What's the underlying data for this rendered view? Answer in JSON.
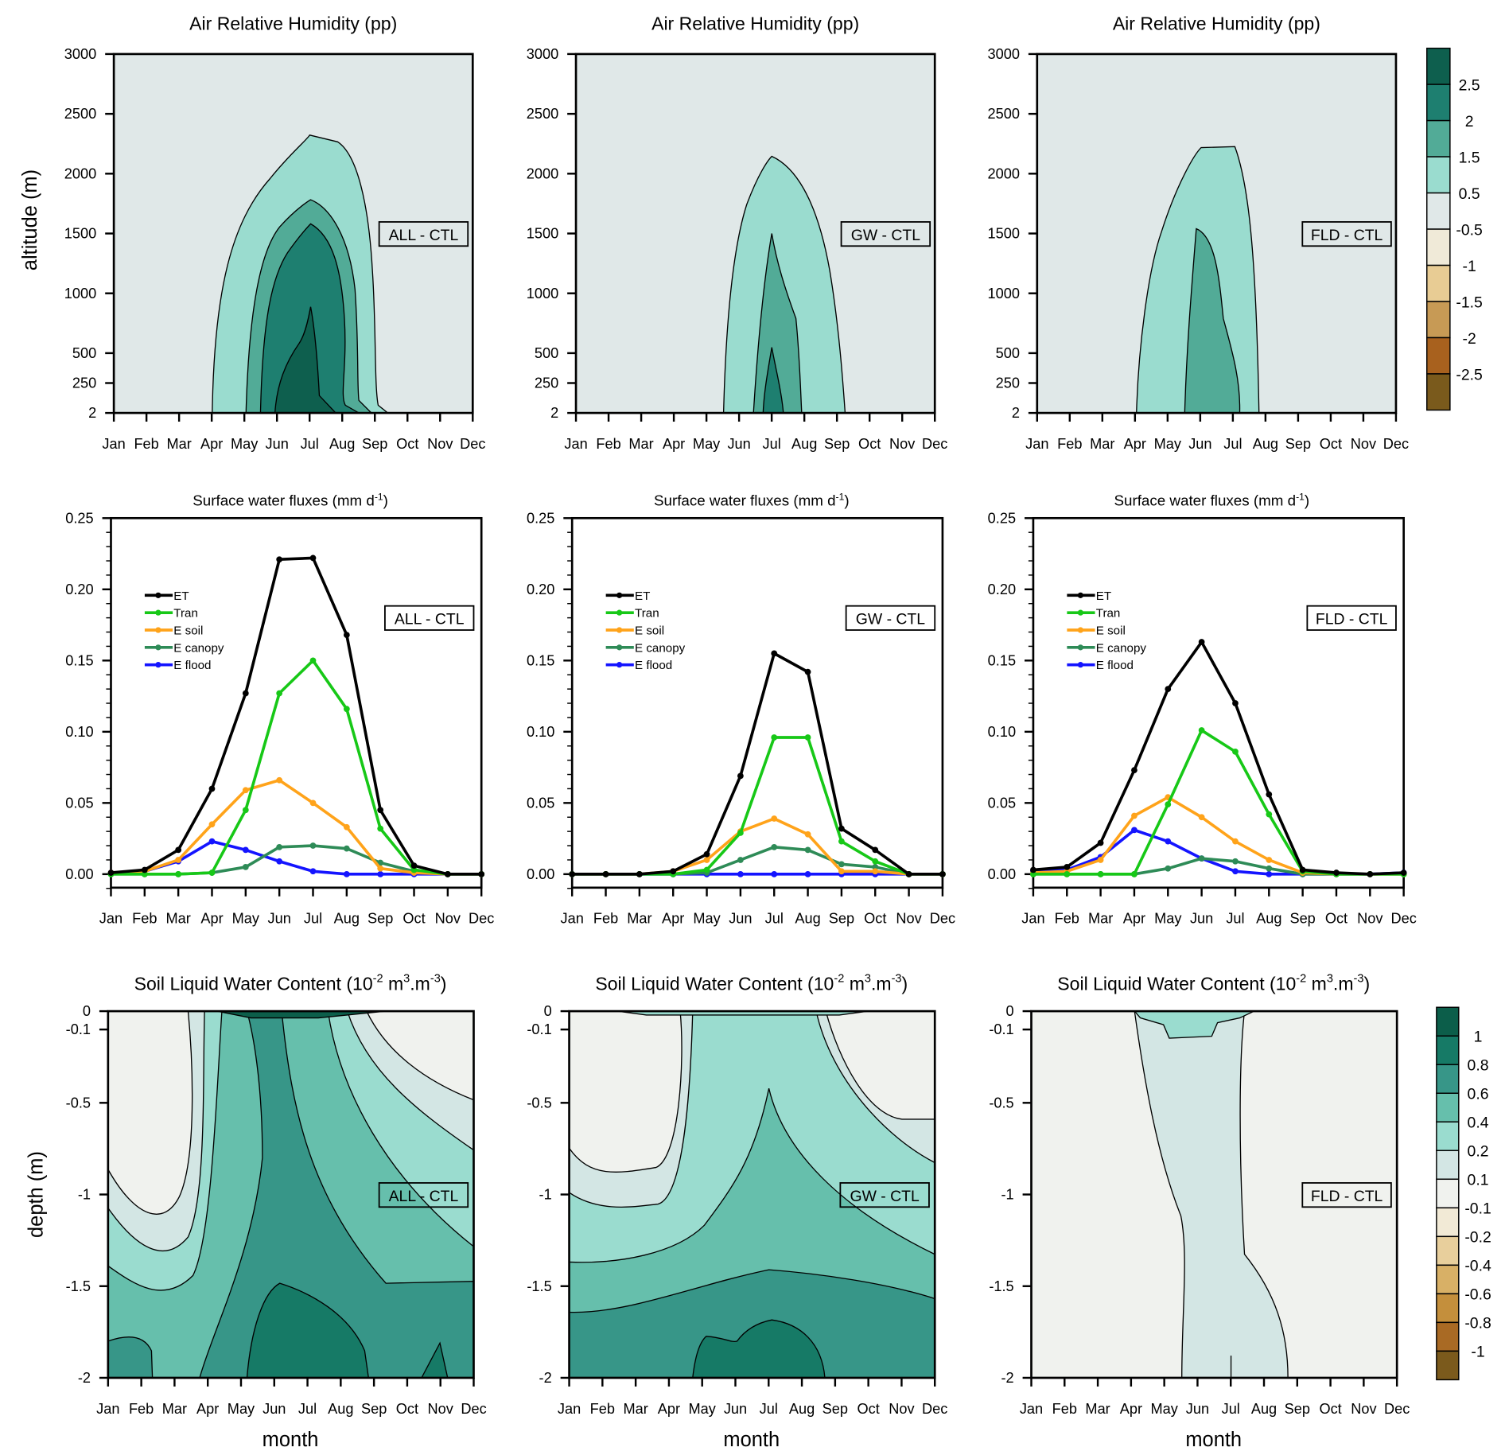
{
  "months": [
    "Jan",
    "Feb",
    "Mar",
    "Apr",
    "May",
    "Jun",
    "Jul",
    "Aug",
    "Sep",
    "Oct",
    "Nov",
    "Dec"
  ],
  "row1": {
    "title": "Air Relative Humidity (pp)",
    "ylabel": "altitude (m)",
    "yticks": [
      "3000",
      "2500",
      "2000",
      "1500",
      "1000",
      "500",
      "250",
      "2"
    ],
    "panels": [
      "ALL - CTL",
      "GW - CTL",
      "FLD - CTL"
    ]
  },
  "colorbar1": {
    "labels": [
      "2.5",
      "2",
      "1.5",
      "0.5",
      "-0.5",
      "-1",
      "-1.5",
      "-2",
      "-2.5"
    ],
    "colors": [
      "#0e5f4e",
      "#1e7f70",
      "#52ab97",
      "#9adccf",
      "#e0e8e8",
      "#f0ead8",
      "#e8cc94",
      "#c79a55",
      "#a8611e",
      "#7a5a1c"
    ]
  },
  "row2": {
    "title_main": "Surface water fluxes (mm d",
    "title_sup": "-1",
    "title_end": ")",
    "yticks": [
      "0.25",
      "0.20",
      "0.15",
      "0.10",
      "0.05",
      "0.00"
    ],
    "panels": [
      "ALL - CTL",
      "GW - CTL",
      "FLD - CTL"
    ]
  },
  "row3": {
    "title_a": "Soil Liquid Water Content (10",
    "title_b": "-2",
    "title_c": " m",
    "title_d": "3",
    "title_e": ".m",
    "title_f": "-3",
    "title_g": ")",
    "ylabel": "depth (m)",
    "xlabel": "month",
    "yticks": [
      "0",
      "-0.1",
      "-0.5",
      "-1",
      "-1.5",
      "-2"
    ],
    "panels": [
      "ALL - CTL",
      "GW - CTL",
      "FLD - CTL"
    ]
  },
  "colorbar2": {
    "labels": [
      "1",
      "0.8",
      "0.6",
      "0.4",
      "0.2",
      "0.1",
      "-0.1",
      "-0.2",
      "-0.4",
      "-0.6",
      "-0.8",
      "-1"
    ],
    "colors": [
      "#0c5e4a",
      "#167a66",
      "#379688",
      "#66bfac",
      "#9adccf",
      "#d3e6e4",
      "#f0f2ee",
      "#f2ead6",
      "#e8cf9c",
      "#d8b066",
      "#c48f3c",
      "#a96a24",
      "#7b5a1c"
    ]
  },
  "chart_data": [
    {
      "type": "line",
      "title": "Surface water fluxes (mm d-1)",
      "panel": "ALL - CTL",
      "categories": [
        "Jan",
        "Feb",
        "Mar",
        "Apr",
        "May",
        "Jun",
        "Jul",
        "Aug",
        "Sep",
        "Oct",
        "Nov",
        "Dec"
      ],
      "ylim": [
        -0.01,
        0.25
      ],
      "legend": "top-left",
      "series": [
        {
          "name": "ET",
          "color": "#000000",
          "values": [
            0.001,
            0.003,
            0.017,
            0.06,
            0.127,
            0.221,
            0.222,
            0.168,
            0.045,
            0.006,
            0,
            0
          ]
        },
        {
          "name": "Tran",
          "color": "#17c817",
          "values": [
            0,
            0,
            0,
            0.001,
            0.045,
            0.127,
            0.15,
            0.116,
            0.032,
            0.003,
            0,
            0
          ]
        },
        {
          "name": "E soil",
          "color": "#ffa31a",
          "values": [
            0.001,
            0.002,
            0.01,
            0.035,
            0.059,
            0.066,
            0.05,
            0.033,
            0.004,
            0.001,
            0,
            0
          ]
        },
        {
          "name": "E canopy",
          "color": "#2e8b57",
          "values": [
            0,
            0,
            0,
            0.001,
            0.005,
            0.019,
            0.02,
            0.018,
            0.008,
            0.002,
            0,
            0
          ]
        },
        {
          "name": "E flood",
          "color": "#1414ff",
          "values": [
            0.001,
            0.002,
            0.009,
            0.023,
            0.017,
            0.009,
            0.002,
            0,
            0,
            0,
            0,
            0
          ]
        }
      ]
    },
    {
      "type": "line",
      "title": "Surface water fluxes (mm d-1)",
      "panel": "GW - CTL",
      "categories": [
        "Jan",
        "Feb",
        "Mar",
        "Apr",
        "May",
        "Jun",
        "Jul",
        "Aug",
        "Sep",
        "Oct",
        "Nov",
        "Dec"
      ],
      "ylim": [
        -0.01,
        0.25
      ],
      "legend": "top-left",
      "series": [
        {
          "name": "ET",
          "color": "#000000",
          "values": [
            0,
            0,
            0,
            0.002,
            0.014,
            0.069,
            0.155,
            0.142,
            0.032,
            0.017,
            0,
            0
          ]
        },
        {
          "name": "Tran",
          "color": "#17c817",
          "values": [
            0,
            0,
            0,
            0,
            0.003,
            0.029,
            0.096,
            0.096,
            0.023,
            0.009,
            0,
            0
          ]
        },
        {
          "name": "E soil",
          "color": "#ffa31a",
          "values": [
            0,
            0,
            0,
            0.002,
            0.01,
            0.03,
            0.039,
            0.028,
            0.002,
            0.002,
            0,
            0
          ]
        },
        {
          "name": "E canopy",
          "color": "#2e8b57",
          "values": [
            0,
            0,
            0,
            0,
            0.001,
            0.01,
            0.019,
            0.017,
            0.007,
            0.005,
            0,
            0
          ]
        },
        {
          "name": "E flood",
          "color": "#1414ff",
          "values": [
            0,
            0,
            0,
            0,
            0,
            0,
            0,
            0,
            0,
            0,
            0,
            0
          ]
        }
      ]
    },
    {
      "type": "line",
      "title": "Surface water fluxes (mm d-1)",
      "panel": "FLD - CTL",
      "categories": [
        "Jan",
        "Feb",
        "Mar",
        "Apr",
        "May",
        "Jun",
        "Jul",
        "Aug",
        "Sep",
        "Oct",
        "Nov",
        "Dec"
      ],
      "ylim": [
        -0.01,
        0.25
      ],
      "legend": "top-left",
      "series": [
        {
          "name": "ET",
          "color": "#000000",
          "values": [
            0.003,
            0.005,
            0.022,
            0.073,
            0.13,
            0.163,
            0.12,
            0.056,
            0.003,
            0.001,
            0,
            0.001
          ]
        },
        {
          "name": "Tran",
          "color": "#17c817",
          "values": [
            0,
            0,
            0,
            0,
            0.049,
            0.101,
            0.086,
            0.042,
            0.002,
            0,
            0,
            0
          ]
        },
        {
          "name": "E soil",
          "color": "#ffa31a",
          "values": [
            0.001,
            0.002,
            0.01,
            0.041,
            0.054,
            0.04,
            0.023,
            0.01,
            0.001,
            0,
            0,
            0
          ]
        },
        {
          "name": "E canopy",
          "color": "#2e8b57",
          "values": [
            0,
            0,
            0,
            0,
            0.004,
            0.011,
            0.009,
            0.004,
            0,
            0,
            0,
            0
          ]
        },
        {
          "name": "E flood",
          "color": "#1414ff",
          "values": [
            0.002,
            0.003,
            0.012,
            0.031,
            0.023,
            0.011,
            0.002,
            0,
            0,
            0,
            0,
            0.001
          ]
        }
      ]
    }
  ]
}
